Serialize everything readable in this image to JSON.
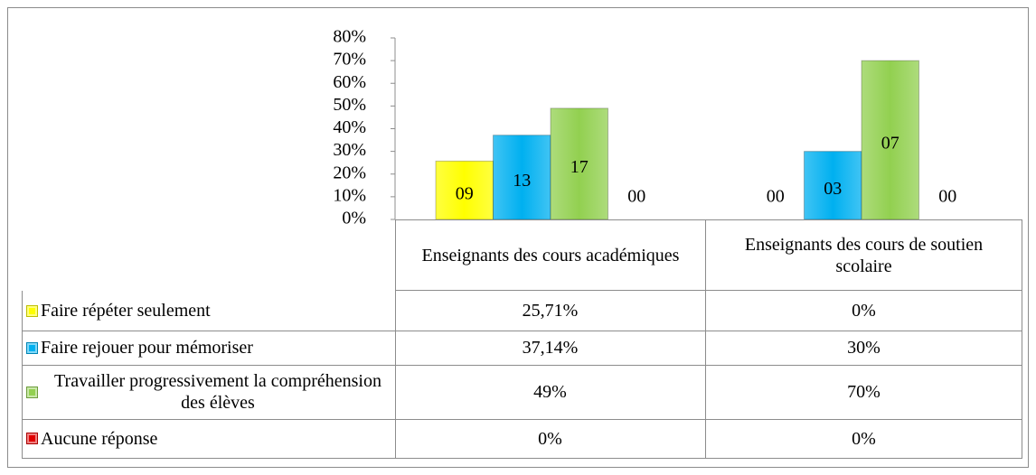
{
  "chart_data": {
    "type": "bar",
    "categories": [
      "Enseignants des cours académiques",
      "Enseignants des cours de soutien scolaire"
    ],
    "series": [
      {
        "name": "Faire répéter seulement",
        "color": "#ffff00",
        "values": [
          25.71,
          0
        ],
        "value_labels": [
          "25,71%",
          "0%"
        ],
        "count_labels": [
          "09",
          "00"
        ]
      },
      {
        "name": "Faire rejouer pour mémoriser",
        "color": "#00b0f0",
        "values": [
          37.14,
          30
        ],
        "value_labels": [
          "37,14%",
          "30%"
        ],
        "count_labels": [
          "13",
          "03"
        ]
      },
      {
        "name": "Travailler progressivement la compréhension des élèves",
        "color": "#92d050",
        "values": [
          49,
          70
        ],
        "value_labels": [
          "49%",
          "70%"
        ],
        "count_labels": [
          "17",
          "07"
        ]
      },
      {
        "name": "Aucune réponse",
        "color": "#e00000",
        "values": [
          0,
          0
        ],
        "value_labels": [
          "0%",
          "0%"
        ],
        "count_labels": [
          "00",
          "00"
        ]
      }
    ],
    "ylim": [
      0,
      80
    ],
    "yticks": [
      {
        "value": 0,
        "label": "0%"
      },
      {
        "value": 10,
        "label": "10%"
      },
      {
        "value": 20,
        "label": "20%"
      },
      {
        "value": 30,
        "label": "30%"
      },
      {
        "value": 40,
        "label": "40%"
      },
      {
        "value": 50,
        "label": "50%"
      },
      {
        "value": 60,
        "label": "60%"
      },
      {
        "value": 70,
        "label": "70%"
      },
      {
        "value": 80,
        "label": "80%"
      }
    ],
    "grid": false,
    "data_table": true
  }
}
